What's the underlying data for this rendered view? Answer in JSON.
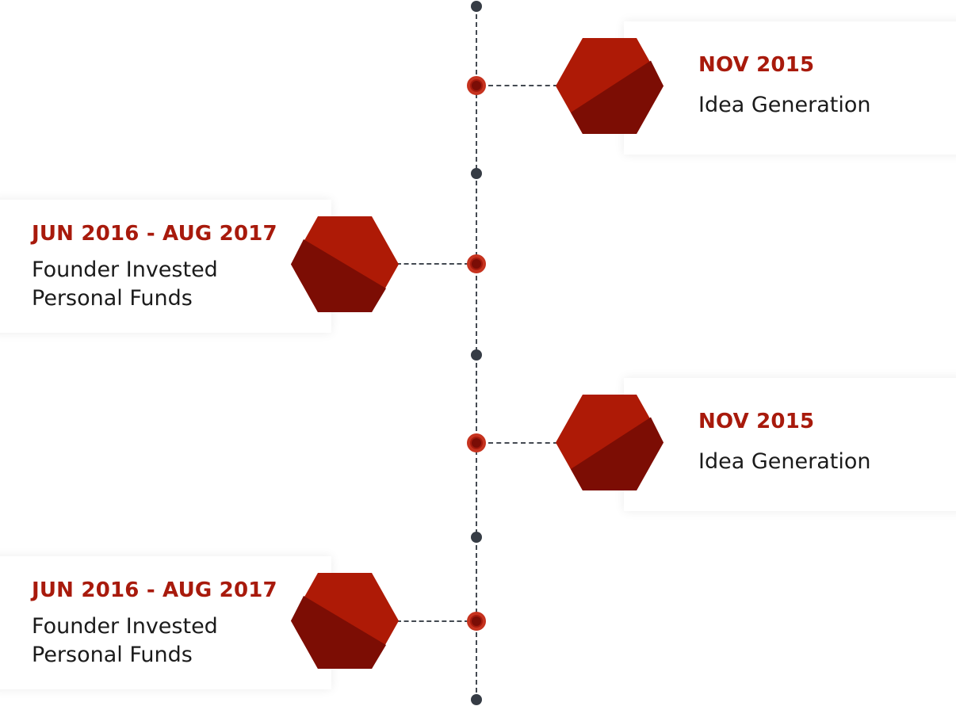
{
  "colors": {
    "accent": "#a81a0c",
    "hex_light": "#ae1a06",
    "hex_dark": "#7c0d04",
    "spine": "#444a52",
    "dot": "#363c45"
  },
  "timeline": {
    "events": [
      {
        "date": "NOV 2015",
        "title": "Idea Generation"
      },
      {
        "date": "JUN 2016 - AUG 2017",
        "title": "Founder Invested Personal Funds"
      },
      {
        "date": "NOV 2015",
        "title": "Idea Generation"
      },
      {
        "date": "JUN 2016 - AUG 2017",
        "title": "Founder Invested Personal Funds"
      }
    ]
  }
}
